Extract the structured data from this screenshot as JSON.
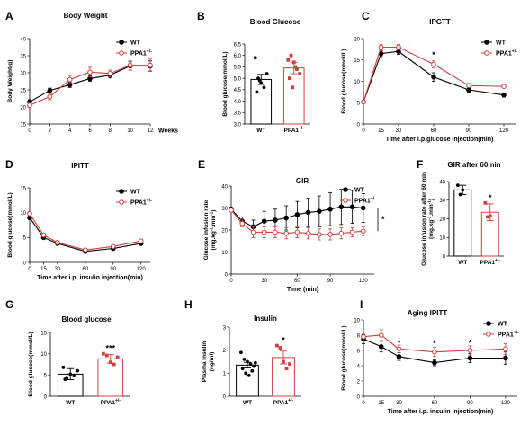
{
  "chart_data": [
    {
      "id": "A",
      "type": "line",
      "panel_letter": "A",
      "title": "Body Weight",
      "xlabel": "",
      "x_unit": "Weeks",
      "ylabel": "Body Weight(g)",
      "xlim": [
        0,
        12
      ],
      "ylim": [
        15,
        40
      ],
      "x": [
        0,
        2,
        4,
        6,
        8,
        10,
        12
      ],
      "xticks": [
        0,
        2,
        4,
        6,
        8,
        10,
        12
      ],
      "yticks": [
        15,
        20,
        25,
        30,
        35,
        40
      ],
      "legend": "top-right",
      "series": [
        {
          "name": "WT",
          "marker": "filled",
          "color": "#000000",
          "values": [
            21.5,
            24.8,
            26.5,
            28.3,
            29.3,
            32.0,
            32.0
          ],
          "err": [
            0.6,
            0.7,
            0.8,
            0.8,
            0.8,
            1.2,
            1.5
          ]
        },
        {
          "name": "PPA1",
          "name_sup": "+/-",
          "marker": "open",
          "color": "#d13f3f",
          "values": [
            20.5,
            23.0,
            28.0,
            30.2,
            29.8,
            32.2,
            32.2
          ],
          "err": [
            0.6,
            0.9,
            1.2,
            1.4,
            1.0,
            1.4,
            1.8
          ]
        }
      ]
    },
    {
      "id": "B",
      "type": "bar",
      "panel_letter": "B",
      "title": "Blood Glucose",
      "ylabel": "Blood glucose(mmol/L)",
      "categories": [
        "WT",
        "PPA1"
      ],
      "category_sups": [
        "",
        "+/-"
      ],
      "ylim": [
        3.0,
        6.5
      ],
      "yticks": [
        3.0,
        3.5,
        4.0,
        4.5,
        5.0,
        5.5,
        6.0,
        6.5
      ],
      "values": [
        4.95,
        5.45
      ],
      "err": [
        0.22,
        0.25
      ],
      "colors": [
        "#000000",
        "#d13f3f"
      ],
      "points": [
        [
          5.9,
          5.0,
          4.8,
          4.6,
          5.2,
          4.4,
          4.9
        ],
        [
          5.8,
          6.0,
          5.7,
          5.4,
          5.2,
          5.0,
          4.6,
          5.5
        ]
      ]
    },
    {
      "id": "C",
      "type": "line",
      "panel_letter": "C",
      "title": "IPGTT",
      "xlabel": "Time after i.p.glucose injection(min)",
      "ylabel": "Blood glucose(mmol/L)",
      "xlim": [
        0,
        130
      ],
      "ylim": [
        0,
        20
      ],
      "x": [
        0,
        15,
        30,
        60,
        90,
        120
      ],
      "xticks": [
        0,
        15,
        30,
        60,
        90,
        120
      ],
      "yticks": [
        0,
        5,
        10,
        15,
        20
      ],
      "legend": "top-right",
      "annotations": [
        {
          "text": "*",
          "x": 60,
          "y": 16
        }
      ],
      "series": [
        {
          "name": "WT",
          "marker": "filled",
          "color": "#000000",
          "values": [
            5.2,
            16.5,
            17.0,
            11.0,
            8.0,
            6.8
          ],
          "err": [
            0.3,
            0.7,
            0.7,
            1.0,
            0.6,
            0.5
          ]
        },
        {
          "name": "PPA1",
          "name_sup": "+/-",
          "marker": "open",
          "color": "#d13f3f",
          "values": [
            5.2,
            18.0,
            18.0,
            14.0,
            9.0,
            8.8
          ],
          "err": [
            0.3,
            0.6,
            0.6,
            0.8,
            0.5,
            0.4
          ]
        }
      ]
    },
    {
      "id": "D",
      "type": "line",
      "panel_letter": "D",
      "title": "IPITT",
      "xlabel": "Time after i.p. insulin injection(min)",
      "ylabel": "Blood glucose(mmol/L)",
      "xlim": [
        0,
        130
      ],
      "ylim": [
        0,
        15
      ],
      "x": [
        0,
        15,
        30,
        60,
        90,
        120
      ],
      "xticks": [
        0,
        15,
        30,
        60,
        90,
        120
      ],
      "yticks": [
        0,
        5,
        10,
        15
      ],
      "legend": "top-right",
      "series": [
        {
          "name": "WT",
          "marker": "filled",
          "color": "#000000",
          "values": [
            9.0,
            5.0,
            3.8,
            2.2,
            2.8,
            3.8
          ],
          "err": [
            0.4,
            0.3,
            0.3,
            0.2,
            0.3,
            0.3
          ]
        },
        {
          "name": "PPA1",
          "name_sup": "+/-",
          "marker": "open",
          "color": "#d13f3f",
          "values": [
            9.8,
            5.5,
            4.0,
            2.5,
            3.2,
            4.3
          ],
          "err": [
            0.4,
            0.3,
            0.3,
            0.2,
            0.3,
            0.3
          ]
        }
      ]
    },
    {
      "id": "E",
      "type": "line",
      "panel_letter": "E",
      "title": "GIR",
      "xlabel": "Time (min)",
      "ylabel": "Glucose infusion rate",
      "ylabel2": "(mg.kg",
      "ylabel2_sup1": "-1",
      "ylabel2_mid": ".min",
      "ylabel2_sup2": "-1",
      "ylabel2_end": ")",
      "xlim": [
        0,
        130
      ],
      "ylim": [
        0,
        40
      ],
      "x": [
        0,
        10,
        20,
        30,
        40,
        50,
        60,
        70,
        80,
        90,
        100,
        110,
        120
      ],
      "xticks": [
        0,
        30,
        60,
        90,
        120
      ],
      "yticks": [
        0,
        10,
        20,
        30,
        40
      ],
      "legend": "top-right",
      "annotations": [
        {
          "text": "*",
          "x": 125,
          "y": 25
        }
      ],
      "series": [
        {
          "name": "WT",
          "marker": "filled",
          "color": "#000000",
          "values": [
            29.5,
            24.0,
            21.5,
            24.0,
            24.5,
            25.5,
            27.0,
            28.0,
            28.5,
            29.5,
            30.5,
            30.5,
            30.0
          ],
          "err": [
            0.5,
            2.0,
            3.0,
            4.5,
            5.0,
            5.5,
            6.0,
            6.5,
            7.0,
            7.5,
            8.0,
            7.5,
            6.5
          ]
        },
        {
          "name": "PPA1",
          "name_sup": "+/-",
          "marker": "open",
          "color": "#d13f3f",
          "values": [
            29.0,
            23.0,
            19.0,
            19.0,
            19.0,
            18.5,
            19.0,
            18.5,
            18.0,
            18.0,
            18.5,
            19.0,
            19.5
          ],
          "err": [
            0.5,
            1.5,
            2.5,
            2.5,
            2.5,
            2.5,
            2.5,
            2.5,
            2.5,
            2.5,
            2.5,
            2.0,
            2.0
          ]
        }
      ]
    },
    {
      "id": "F",
      "type": "bar",
      "panel_letter": "F",
      "title": "GIR after 60min",
      "ylabel": "Glucose infusion rate after 60 min",
      "ylabel2": "(mg.kg",
      "ylabel2_sup1": "-1",
      "ylabel2_mid": ".min",
      "ylabel2_sup2": "-1",
      "ylabel2_end": ")",
      "categories": [
        "WT",
        "PPA1"
      ],
      "category_sups": [
        "",
        "+/-"
      ],
      "ylim": [
        0,
        40
      ],
      "yticks": [
        0,
        10,
        20,
        30,
        40
      ],
      "values": [
        35.5,
        23.5
      ],
      "err": [
        2.5,
        4.5
      ],
      "colors": [
        "#000000",
        "#d13f3f"
      ],
      "annotations": [
        {
          "text": "*",
          "category": 1
        }
      ],
      "points": [
        [
          38.0,
          33.0,
          35.5
        ],
        [
          28.5,
          21.0,
          21.5
        ]
      ]
    },
    {
      "id": "G",
      "type": "bar",
      "panel_letter": "G",
      "title": "Blood glucose",
      "ylabel": "Blood glucose(mmol/L)",
      "categories": [
        "WT",
        "PPA1"
      ],
      "category_sups": [
        "",
        "+/-"
      ],
      "ylim": [
        0,
        15
      ],
      "yticks": [
        0,
        5,
        10,
        15
      ],
      "values": [
        5.2,
        8.8
      ],
      "err": [
        1.3,
        1.0
      ],
      "colors": [
        "#000000",
        "#d13f3f"
      ],
      "annotations": [
        {
          "text": "***",
          "category": 1
        }
      ],
      "points": [
        [
          6.8,
          4.2,
          5.2,
          4.8,
          6.0,
          4.0
        ],
        [
          10.0,
          9.6,
          8.0,
          7.5,
          9.2
        ]
      ]
    },
    {
      "id": "H",
      "type": "bar",
      "panel_letter": "H",
      "title": "Insulin",
      "ylabel": "Plasma Insulin",
      "ylabel_unit": "(ng/ml)",
      "categories": [
        "WT",
        "PPA1"
      ],
      "category_sups": [
        "",
        "+/-"
      ],
      "ylim": [
        0.0,
        3.0
      ],
      "yticks": [
        0.0,
        1.0,
        2.0,
        3.0
      ],
      "values": [
        1.35,
        1.68
      ],
      "err": [
        0.12,
        0.28
      ],
      "colors": [
        "#000000",
        "#d13f3f"
      ],
      "annotations": [
        {
          "text": "*",
          "category": 1
        }
      ],
      "points": [
        [
          1.9,
          1.6,
          1.5,
          1.4,
          1.3,
          1.2,
          1.0,
          0.9,
          1.1,
          1.45
        ],
        [
          2.2,
          2.1,
          1.5,
          1.2,
          1.4
        ]
      ]
    },
    {
      "id": "I",
      "type": "line",
      "panel_letter": "I",
      "title": "Aging IPITT",
      "xlabel": "Time after i.p. insulin injection(min)",
      "ylabel": "Blood glucose(mmol/L)",
      "xlim": [
        0,
        130
      ],
      "ylim": [
        0,
        10
      ],
      "x": [
        0,
        15,
        30,
        60,
        90,
        120
      ],
      "xticks": [
        0,
        15,
        30,
        60,
        90,
        120
      ],
      "yticks": [
        0,
        2,
        4,
        6,
        8,
        10
      ],
      "legend": "top-right",
      "annotations": [
        {
          "text": "*",
          "x": 30,
          "y": 6.9
        },
        {
          "text": "*",
          "x": 60,
          "y": 6.8
        },
        {
          "text": "*",
          "x": 90,
          "y": 6.9
        }
      ],
      "series": [
        {
          "name": "WT",
          "marker": "filled",
          "color": "#000000",
          "values": [
            7.5,
            6.5,
            5.2,
            4.4,
            5.0,
            5.0
          ],
          "err": [
            0.6,
            0.7,
            0.5,
            0.4,
            0.6,
            0.8
          ]
        },
        {
          "name": "PPA1",
          "name_sup": "+/-",
          "marker": "open",
          "color": "#d13f3f",
          "values": [
            7.8,
            8.0,
            6.2,
            5.8,
            6.0,
            6.2
          ],
          "err": [
            0.6,
            0.7,
            0.5,
            0.6,
            0.6,
            0.7
          ]
        }
      ]
    }
  ]
}
